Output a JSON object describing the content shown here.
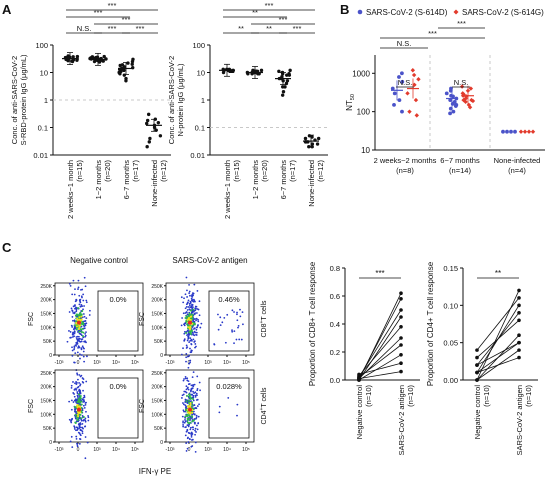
{
  "panel_labels": {
    "A": "A",
    "B": "B",
    "C": "C"
  },
  "colors": {
    "black": "#111111",
    "dashed_line": "#c8c8c8",
    "s614d": "#4b53c9",
    "s614g": "#e23b2d",
    "flow_blue": "#2838c8",
    "flow_green": "#2db84b",
    "flow_yellow": "#f2e21b",
    "flow_red": "#e82a1f"
  },
  "chart_data": [
    {
      "id": "A1",
      "type": "scatter",
      "ylabel": "Conc. of anti-SARS-CoV-2 S-RBD-protein IgG (μg/mL)",
      "yscale": "log",
      "ylim": [
        0.01,
        100
      ],
      "yticks": [
        "0.01",
        "0.1",
        "1",
        "10",
        "100"
      ],
      "threshold": 1,
      "categories": [
        "2 weeks~1 month",
        "1~2 months",
        "6~7 months",
        "None-infected"
      ],
      "category_n": [
        "(n=15)",
        "(n=20)",
        "(n=17)",
        "(n=12)"
      ],
      "series": [
        {
          "points": [
            [
              32,
              35,
              28,
              40,
              25,
              30,
              38,
              33,
              27,
              36,
              31,
              29,
              34,
              26,
              37
            ],
            [
              30,
              34,
              27,
              38,
              25,
              32,
              29,
              36,
              31,
              28,
              33,
              26,
              35,
              30,
              24,
              37,
              32,
              28,
              31,
              33
            ],
            [
              20,
              15,
              10,
              8,
              25,
              18,
              12,
              6,
              22,
              14,
              9,
              30,
              16,
              11,
              5,
              19,
              13
            ],
            [
              0.3,
              0.15,
              0.08,
              0.05,
              0.12,
              0.2,
              0.02,
              0.1,
              0.04,
              0.18,
              0.03,
              0.14
            ]
          ],
          "mean": [
            32,
            30,
            14,
            0.12
          ]
        }
      ],
      "comparisons": [
        {
          "from": 0,
          "to": 1,
          "label": "N.S."
        },
        {
          "from": 1,
          "to": 2,
          "label": "***"
        },
        {
          "from": 2,
          "to": 3,
          "label": "***"
        },
        {
          "from": 1,
          "to": 3,
          "label": "***"
        },
        {
          "from": 0,
          "to": 2,
          "label": "***"
        },
        {
          "from": 0,
          "to": 3,
          "label": "***"
        }
      ]
    },
    {
      "id": "A2",
      "type": "scatter",
      "ylabel": "Conc. of anti-SARS-CoV-2 N-protein IgG (μg/mL)",
      "yscale": "log",
      "ylim": [
        0.01,
        100
      ],
      "yticks": [
        "0.01",
        "0.1",
        "1",
        "10",
        "100"
      ],
      "threshold": 0.1,
      "categories": [
        "2 weeks~1 month",
        "1~2 months",
        "6~7 months",
        "None-infected"
      ],
      "category_n": [
        "(n=15)",
        "(n=20)",
        "(n=17)",
        "(n=12)"
      ],
      "series": [
        {
          "points": [
            [
              12,
              11,
              13,
              12,
              10,
              12,
              11,
              13,
              12,
              11,
              12,
              13,
              11,
              12,
              12
            ],
            [
              10,
              11,
              9,
              10,
              12,
              10,
              11,
              9,
              10,
              11,
              10,
              12,
              9,
              10,
              11,
              10,
              9,
              11,
              10,
              10
            ],
            [
              9,
              5,
              3,
              8,
              2,
              10,
              6,
              4,
              12,
              7,
              1.5,
              9,
              5,
              11,
              3,
              8,
              6
            ],
            [
              0.04,
              0.02,
              0.03,
              0.05,
              0.03,
              0.025,
              0.04,
              0.035,
              0.02,
              0.03,
              0.045,
              0.025
            ]
          ],
          "mean": [
            12,
            10,
            6,
            0.032
          ]
        }
      ],
      "comparisons": [
        {
          "from": 0,
          "to": 1,
          "label": "**"
        },
        {
          "from": 1,
          "to": 2,
          "label": "**"
        },
        {
          "from": 2,
          "to": 3,
          "label": "***"
        },
        {
          "from": 1,
          "to": 3,
          "label": "***"
        },
        {
          "from": 0,
          "to": 2,
          "label": "**"
        },
        {
          "from": 0,
          "to": 3,
          "label": "***"
        }
      ]
    },
    {
      "id": "B",
      "type": "scatter",
      "ylabel": "NT50",
      "yscale": "log",
      "ylim": [
        10,
        3000
      ],
      "yticks": [
        "10",
        "100",
        "1000"
      ],
      "legend": [
        "SARS-CoV-2 (S-614D)",
        "SARS-CoV-2 (S-614G)"
      ],
      "legend_position": "top",
      "groups": [
        "2 weeks~2 months",
        "6~7 months",
        "None-infected"
      ],
      "group_n": [
        "(n=8)",
        "(n=14)",
        "(n=4)"
      ],
      "series": [
        {
          "name": "SARS-CoV-2 (S-614D)",
          "points": [
            [
              400,
              800,
              300,
              150,
              600,
              200,
              1000,
              100
            ],
            [
              250,
              150,
              300,
              100,
              200,
              350,
              180,
              120,
              260,
              90,
              400,
              160,
              220,
              140
            ],
            [
              30,
              30,
              30,
              30
            ]
          ],
          "mean": [
            360,
            220,
            30
          ]
        },
        {
          "name": "SARS-CoV-2 (S-614G)",
          "points": [
            [
              500,
              900,
              200,
              100,
              700,
              300,
              1200,
              80
            ],
            [
              300,
              200,
              350,
              150,
              250,
              400,
              220,
              180,
              280,
              130,
              450,
              200,
              260,
              190
            ],
            [
              30,
              30,
              30,
              30
            ]
          ],
          "mean": [
            400,
            260,
            30
          ]
        }
      ],
      "comparisons": [
        {
          "label": "N.S."
        },
        {
          "label": "N.S."
        },
        {
          "label": "N.S."
        },
        {
          "label": "***"
        },
        {
          "label": "***"
        }
      ]
    }
  ],
  "flow": {
    "col_titles": [
      "Negative control",
      "SARS-CoV-2 antigen"
    ],
    "row_labels": [
      "CD8+T cells",
      "CD4+T cells"
    ],
    "ylabel": "FSC",
    "xlabel": "IFN-γ PE",
    "yticks": [
      "0",
      "50K",
      "100K",
      "150K",
      "200K",
      "250K"
    ],
    "xticks": [
      "-10³",
      "0",
      "10³",
      "10⁴",
      "10⁵"
    ],
    "gates": [
      "0.0%",
      "0.46%",
      "0.0%",
      "0.028%"
    ]
  },
  "paired": [
    {
      "ylabel": "Proportion of CD8+ T cell response",
      "ylim": [
        0,
        0.8
      ],
      "yticks": [
        "0.0",
        "0.2",
        "0.4",
        "0.6",
        "0.8"
      ],
      "categories": [
        "Negative control",
        "SARS-CoV-2 antigen"
      ],
      "category_n": [
        "(n=10)",
        "(n=10)"
      ],
      "pairs": [
        [
          0.0,
          0.62
        ],
        [
          0.01,
          0.58
        ],
        [
          0.02,
          0.5
        ],
        [
          0.0,
          0.45
        ],
        [
          0.03,
          0.38
        ],
        [
          0.01,
          0.3
        ],
        [
          0.02,
          0.25
        ],
        [
          0.0,
          0.18
        ],
        [
          0.04,
          0.12
        ],
        [
          0.01,
          0.06
        ]
      ],
      "sig": "***"
    },
    {
      "ylabel": "Proportion of CD4+ T cell response",
      "ylim": [
        0,
        0.15
      ],
      "yticks": [
        "0.00",
        "0.05",
        "0.10",
        "0.15"
      ],
      "categories": [
        "Negative control",
        "SARS-CoV-2 antigen"
      ],
      "category_n": [
        "(n=10)",
        "(n=10)"
      ],
      "pairs": [
        [
          0.0,
          0.12
        ],
        [
          0.04,
          0.11
        ],
        [
          0.01,
          0.1
        ],
        [
          0.02,
          0.09
        ],
        [
          0.03,
          0.08
        ],
        [
          0.0,
          0.06
        ],
        [
          0.01,
          0.05
        ],
        [
          0.02,
          0.05
        ],
        [
          0.0,
          0.04
        ],
        [
          0.01,
          0.03
        ]
      ],
      "sig": "**"
    }
  ]
}
